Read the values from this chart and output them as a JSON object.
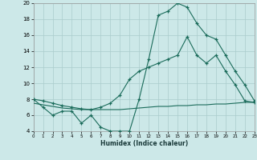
{
  "xlabel": "Humidex (Indice chaleur)",
  "background_color": "#cce8e8",
  "grid_color": "#aacccc",
  "line_color": "#1a6b5a",
  "xlim": [
    0,
    23
  ],
  "ylim": [
    4,
    20
  ],
  "xtick_vals": [
    0,
    1,
    2,
    3,
    4,
    5,
    6,
    7,
    8,
    9,
    10,
    11,
    12,
    13,
    14,
    15,
    16,
    17,
    18,
    19,
    20,
    21,
    22,
    23
  ],
  "ytick_vals": [
    4,
    6,
    8,
    10,
    12,
    14,
    16,
    18,
    20
  ],
  "curve1_x": [
    0,
    1,
    2,
    3,
    4,
    5,
    6,
    7,
    8,
    9,
    10,
    11,
    12,
    13,
    14,
    15,
    16,
    17,
    18,
    19,
    20,
    21,
    22,
    23
  ],
  "curve1_y": [
    8,
    7,
    6,
    6.5,
    6.5,
    5,
    6,
    4.5,
    4,
    4,
    4,
    8,
    13,
    18.5,
    19,
    20,
    19.5,
    17.5,
    16,
    15.5,
    13.5,
    11.5,
    9.8,
    7.8
  ],
  "curve2_x": [
    0,
    1,
    2,
    3,
    4,
    5,
    6,
    7,
    8,
    9,
    10,
    11,
    12,
    13,
    14,
    15,
    16,
    17,
    18,
    19,
    20,
    21,
    22,
    23
  ],
  "curve2_y": [
    7.5,
    7.3,
    7.1,
    6.9,
    6.8,
    6.7,
    6.7,
    6.7,
    6.7,
    6.7,
    6.8,
    6.9,
    7.0,
    7.1,
    7.1,
    7.2,
    7.2,
    7.3,
    7.3,
    7.4,
    7.4,
    7.5,
    7.6,
    7.6
  ],
  "curve3_x": [
    0,
    1,
    2,
    3,
    4,
    5,
    6,
    7,
    8,
    9,
    10,
    11,
    12,
    13,
    14,
    15,
    16,
    17,
    18,
    19,
    20,
    21,
    22,
    23
  ],
  "curve3_y": [
    8.0,
    7.8,
    7.5,
    7.2,
    7.0,
    6.8,
    6.7,
    7.0,
    7.5,
    8.5,
    10.5,
    11.5,
    12.0,
    12.5,
    13.0,
    13.5,
    15.8,
    13.5,
    12.5,
    13.5,
    11.5,
    9.8,
    7.8,
    7.6
  ]
}
